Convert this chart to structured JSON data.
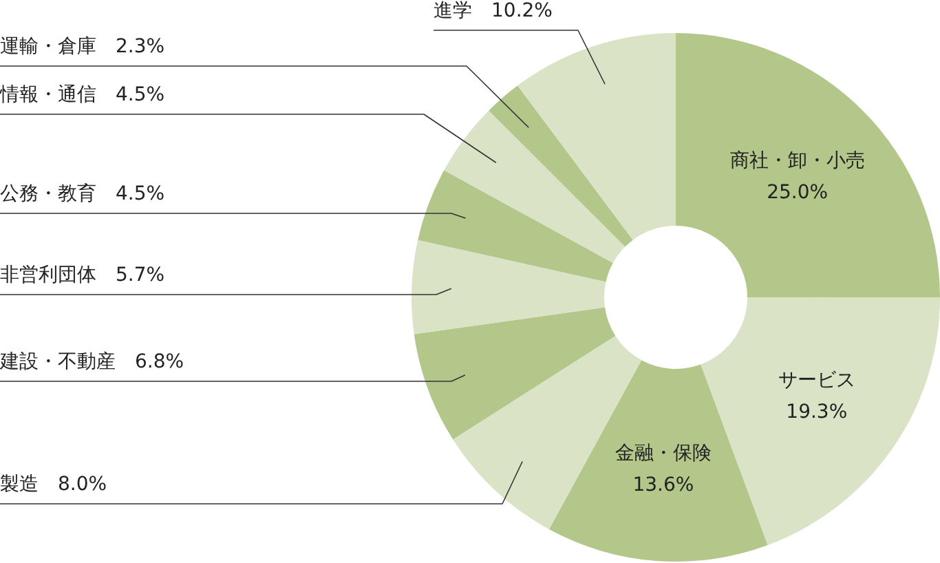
{
  "chart_data": {
    "type": "donut",
    "categories": [
      "商社・卸・小売",
      "サービス",
      "金融・保険",
      "製造",
      "建設・不動産",
      "非営利団体",
      "公務・教育",
      "情報・通信",
      "運輸・倉庫",
      "進学"
    ],
    "values": [
      25.0,
      19.3,
      13.6,
      8.0,
      6.8,
      5.7,
      4.5,
      4.5,
      2.3,
      10.2
    ],
    "value_labels": [
      "25.0%",
      "19.3%",
      "13.6%",
      "8.0%",
      "6.8%",
      "5.7%",
      "4.5%",
      "4.5%",
      "2.3%",
      "10.2%"
    ],
    "colors": [
      "#b3c78b",
      "#dae3c6",
      "#b3c78b",
      "#dae3c6",
      "#b3c78b",
      "#dae3c6",
      "#b3c78b",
      "#dae3c6",
      "#b3c78b",
      "#dae3c6"
    ]
  }
}
